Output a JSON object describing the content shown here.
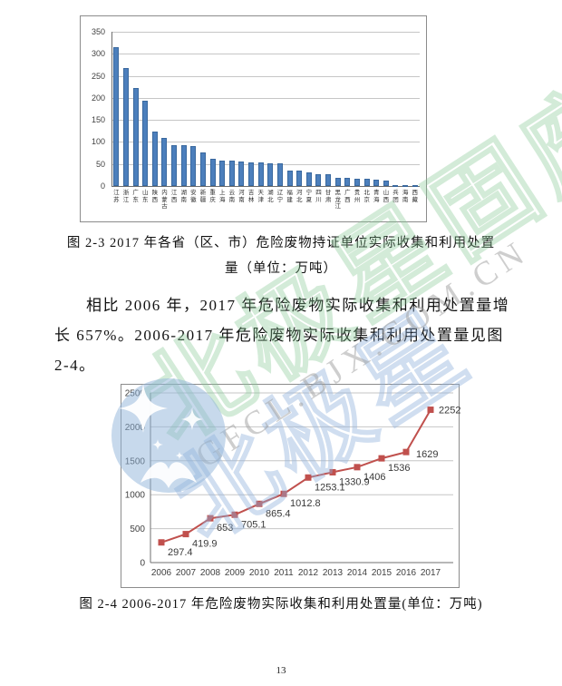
{
  "page": {
    "number": "13"
  },
  "figure_2_3": {
    "caption_line1": "图 2-3  2017 年各省（区、市）危险废物持证单位实际收集和利用处置",
    "caption_line2": "量（单位：万吨）"
  },
  "paragraph": {
    "lines": [
      "相比 2006 年，2017 年危险废物实际收集和利用处置量增",
      "长 657%。2006-2017 年危险废物实际收集和利用处置量见图",
      "2-4。"
    ]
  },
  "figure_2_4": {
    "caption": "图 2-4 2006-2017 年危险废物实际收集和利用处置量(单位：万吨)"
  },
  "watermark": {
    "brand_cn": "北极星固废网",
    "brand_cn_partial": "北极星",
    "url": "GFCL.BJX.COM.CN",
    "green": "#86c792",
    "blue": "#8eb0db",
    "gray": "#9e9e9e",
    "logo_blue": "#8fb4d9"
  },
  "chart_data": [
    {
      "type": "bar",
      "title": "2017年各省（区、市）危险废物持证单位实际收集和利用处置量",
      "unit": "万吨",
      "categories": [
        "江苏",
        "浙江",
        "广东",
        "山东",
        "陕西",
        "内蒙古",
        "江西",
        "湖南",
        "安徽",
        "新疆",
        "重庆",
        "上海",
        "云南",
        "河南",
        "吉林",
        "天津",
        "湖北",
        "辽宁",
        "福建",
        "河北",
        "宁夏",
        "四川",
        "甘肃",
        "黑龙江",
        "广西",
        "贵州",
        "北京",
        "青海",
        "山西",
        "兵团",
        "海南",
        "西藏"
      ],
      "values": [
        315,
        268,
        222,
        194,
        124,
        110,
        93,
        92,
        91,
        77,
        61,
        57,
        57,
        56,
        54,
        54,
        52,
        51,
        35,
        34,
        30,
        27,
        26,
        19,
        18,
        17,
        16,
        15,
        13,
        3,
        2,
        1
      ],
      "ylim": [
        0,
        350
      ],
      "ytick_step": 50,
      "yticks": [
        0,
        50,
        100,
        150,
        200,
        250,
        300,
        350
      ],
      "bar_color": "#4c7fbc",
      "grid": true,
      "legend": "none"
    },
    {
      "type": "line",
      "title": "2006-2017年危险废物实际收集和利用处置量",
      "unit": "万吨",
      "x": [
        2006,
        2007,
        2008,
        2009,
        2010,
        2011,
        2012,
        2013,
        2014,
        2015,
        2016,
        2017
      ],
      "values": [
        297.4,
        419.9,
        653,
        705.1,
        865.4,
        1012.8,
        1253.1,
        1330.9,
        1406,
        1536,
        1629,
        2252
      ],
      "point_labels": [
        "297.4",
        "419.9",
        "653",
        "705.1",
        "865.4",
        "1012.8",
        "1253.1",
        "1330.9",
        "1406",
        "1536",
        "1629",
        "2252"
      ],
      "ylim": [
        0,
        2500
      ],
      "ytick_step": 500,
      "yticks": [
        0,
        500,
        1000,
        1500,
        2000,
        2500
      ],
      "line_color": "#c0504d",
      "marker": "square",
      "grid": true,
      "legend": "none"
    }
  ]
}
